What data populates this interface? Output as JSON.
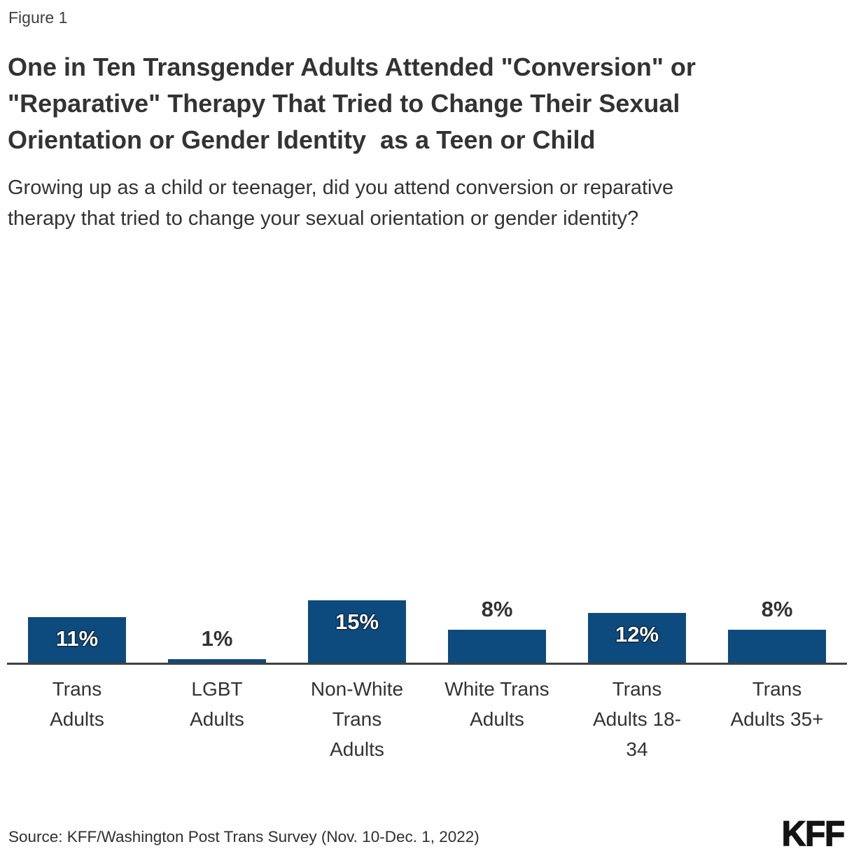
{
  "figure_label": "Figure 1",
  "title": "One in Ten Transgender Adults Attended \"Conversion\" or\n\"Reparative\" Therapy That Tried to Change Their Sexual\nOrientation or Gender Identity  as a Teen or Child",
  "subtitle": "Growing up as a child or teenager, did you attend conversion or reparative\ntherapy that tried to change your sexual orientation or gender identity?",
  "source": "Source: KFF/Washington Post Trans Survey (Nov. 10-Dec. 1, 2022)",
  "logo": "KFF",
  "colors": {
    "bar": "#0d4a7d",
    "axis": "#404040",
    "text_dark": "#333333",
    "label_inside": "#ffffff"
  },
  "chart_data": {
    "type": "bar",
    "title": "One in Ten Transgender Adults Attended \"Conversion\" or \"Reparative\" Therapy That Tried to Change Their Sexual Orientation or Gender Identity  as a Teen or Child",
    "subtitle": "Growing up as a child or teenager, did you attend conversion or reparative therapy that tried to change your sexual orientation or gender identity?",
    "categories": [
      "Trans Adults",
      "LGBT Adults",
      "Non-White Trans Adults",
      "White Trans Adults",
      "Trans Adults 18-34",
      "Trans Adults 35+"
    ],
    "categories_display": [
      "Trans\nAdults",
      "LGBT\nAdults",
      "Non-White\nTrans\nAdults",
      "White Trans\nAdults",
      "Trans\nAdults 18-\n34",
      "Trans\nAdults 35+"
    ],
    "values": [
      11,
      1,
      15,
      8,
      12,
      8
    ],
    "labels": [
      "11%",
      "1%",
      "15%",
      "8%",
      "12%",
      "8%"
    ],
    "xlabel": "",
    "ylabel": "",
    "ylim": [
      0,
      100
    ],
    "grid": false,
    "legend": "none"
  }
}
